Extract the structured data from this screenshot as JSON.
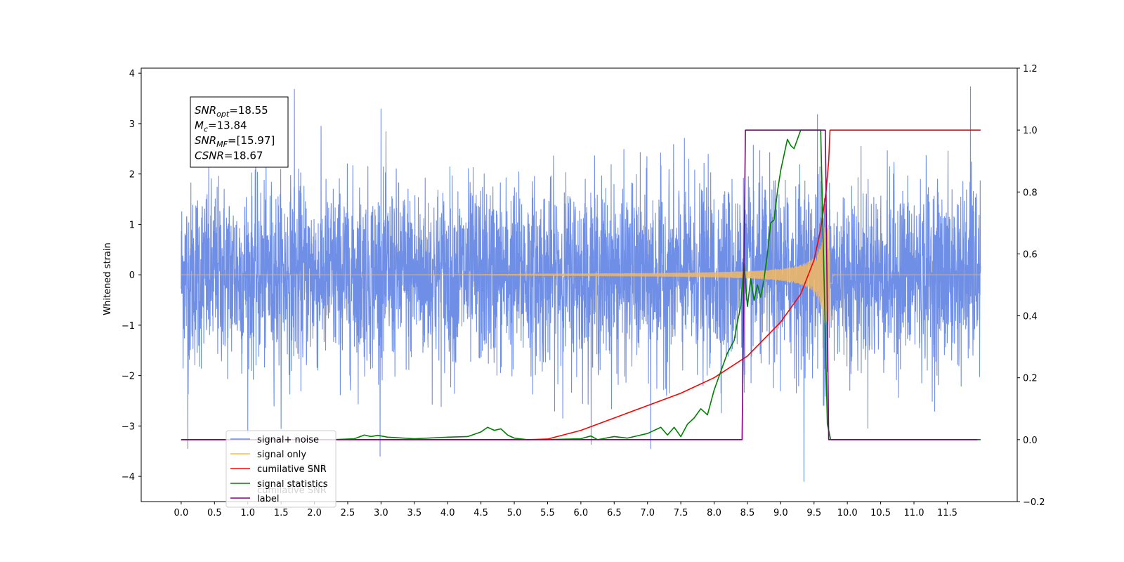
{
  "chart_data": {
    "type": "line",
    "title": "",
    "ylabel": "Whitened strain",
    "xlim": [
      -0.6,
      12.55
    ],
    "ylim_left": [
      -4.5,
      4.1
    ],
    "ylim_right": [
      -0.2,
      1.2
    ],
    "xticks": [
      "0.0",
      "0.5",
      "1.0",
      "1.5",
      "2.0",
      "2.5",
      "3.0",
      "3.5",
      "4.0",
      "4.5",
      "5.0",
      "5.5",
      "6.0",
      "6.5",
      "7.0",
      "7.5",
      "8.0",
      "8.5",
      "9.0",
      "9.5",
      "10.0",
      "10.5",
      "11.0",
      "11.5"
    ],
    "yticks_left": [
      "4",
      "3",
      "2",
      "1",
      "0",
      "−1",
      "−2",
      "−3",
      "−4"
    ],
    "yticks_right": [
      "1.2",
      "1.0",
      "0.8",
      "0.6",
      "0.4",
      "0.2",
      "0.0",
      "−0.2"
    ],
    "grid": false,
    "legend_position": "lower-left",
    "annotation": {
      "lines": [
        {
          "base": "SNR",
          "sub": "opt",
          "rest": "=18.55"
        },
        {
          "base": "M",
          "sub": "c",
          "rest": "=13.84"
        },
        {
          "base": "SNR",
          "sub": "MF",
          "rest": "=[15.97]"
        },
        {
          "base": "CSNR",
          "sub": "",
          "rest": "=18.67"
        }
      ]
    },
    "ghost_text": [
      "cumilative SNR",
      "cumilative SNR"
    ],
    "series": [
      {
        "name": "signal+ noise",
        "color": "#6f8ee6",
        "axis": "left",
        "kind": "noise",
        "x_range": [
          0.0,
          12.0
        ],
        "noise_sigma": 0.9,
        "note_spikes": [
          [
            0.1,
            -3.45
          ],
          [
            1.7,
            3.68
          ],
          [
            3.0,
            3.29
          ],
          [
            7.05,
            -3.45
          ],
          [
            9.35,
            -4.1
          ],
          [
            9.55,
            3.18
          ],
          [
            11.85,
            3.73
          ]
        ]
      },
      {
        "name": "signal only",
        "color": "#f5b95f",
        "axis": "left",
        "kind": "chirp",
        "x_range": [
          0.0,
          12.0
        ],
        "merger_x": 9.72,
        "peak_amplitude": 1.0
      },
      {
        "name": "cumilative SNR",
        "color": "#ff0000",
        "axis": "right",
        "x": [
          0.0,
          5.2,
          5.5,
          6.0,
          6.5,
          7.0,
          7.5,
          8.0,
          8.5,
          9.0,
          9.3,
          9.5,
          9.6,
          9.68,
          9.72,
          9.74,
          12.0
        ],
        "y": [
          0.0,
          0.0,
          0.002,
          0.03,
          0.07,
          0.11,
          0.15,
          0.2,
          0.27,
          0.38,
          0.47,
          0.58,
          0.68,
          0.8,
          0.9,
          1.0,
          1.0
        ]
      },
      {
        "name": "signal statistics",
        "color": "#008000",
        "axis": "right",
        "x": [
          0.0,
          2.3,
          2.6,
          2.75,
          2.85,
          2.95,
          3.1,
          3.5,
          4.0,
          4.3,
          4.5,
          4.6,
          4.7,
          4.8,
          4.9,
          5.0,
          5.2,
          5.5,
          6.0,
          6.15,
          6.25,
          6.5,
          6.7,
          6.9,
          7.0,
          7.2,
          7.3,
          7.4,
          7.5,
          7.6,
          7.7,
          7.8,
          7.9,
          8.0,
          8.1,
          8.2,
          8.3,
          8.35,
          8.4,
          8.45,
          8.5,
          8.55,
          8.6,
          8.65,
          8.7,
          8.75,
          8.8,
          8.85,
          8.9,
          8.95,
          9.0,
          9.05,
          9.1,
          9.15,
          9.2,
          9.25,
          9.3,
          9.4,
          9.5,
          9.6,
          9.7,
          9.75,
          9.8,
          12.0
        ],
        "y": [
          0.0,
          0.0,
          0.003,
          0.015,
          0.01,
          0.014,
          0.008,
          0.003,
          0.008,
          0.01,
          0.025,
          0.04,
          0.03,
          0.035,
          0.015,
          0.005,
          0.0,
          0.0,
          0.003,
          0.012,
          0.0,
          0.01,
          0.005,
          0.015,
          0.02,
          0.04,
          0.015,
          0.04,
          0.01,
          0.05,
          0.07,
          0.1,
          0.08,
          0.16,
          0.22,
          0.28,
          0.32,
          0.38,
          0.43,
          0.57,
          0.43,
          0.52,
          0.45,
          0.5,
          0.46,
          0.52,
          0.6,
          0.7,
          0.71,
          0.8,
          0.87,
          0.92,
          0.97,
          0.95,
          0.94,
          0.97,
          1.0,
          1.0,
          1.0,
          1.0,
          0.05,
          0.0,
          0.0,
          0.0
        ]
      },
      {
        "name": "label",
        "color": "#800080",
        "axis": "right",
        "x": [
          0.0,
          8.42,
          8.47,
          9.67,
          9.72,
          11.95
        ],
        "y": [
          0.0,
          0.0,
          1.0,
          1.0,
          0.0,
          0.0
        ]
      }
    ]
  }
}
